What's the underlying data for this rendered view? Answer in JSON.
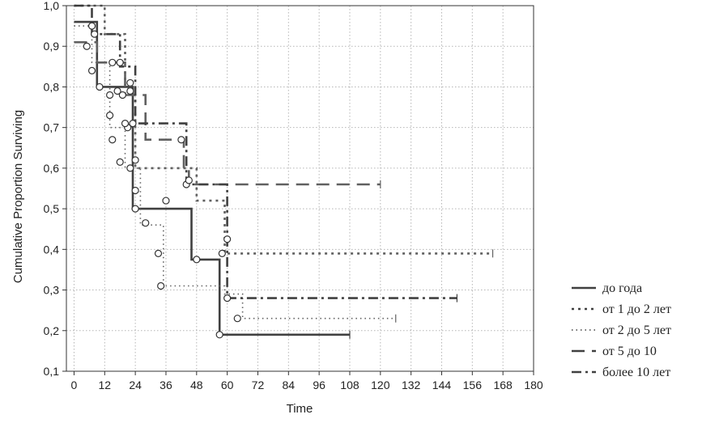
{
  "chart_data": {
    "type": "line",
    "title": "",
    "xlabel": "Time",
    "ylabel": "Cumulative Proportion Surviving",
    "xlim": [
      -3,
      180
    ],
    "ylim": [
      0.1,
      1.0
    ],
    "x_ticks": [
      "0",
      "12",
      "24",
      "36",
      "48",
      "60",
      "72",
      "84",
      "96",
      "108",
      "120",
      "132",
      "144",
      "156",
      "168",
      "180"
    ],
    "y_ticks": [
      "0,1",
      "0,2",
      "0,3",
      "0,4",
      "0,5",
      "0,6",
      "0,7",
      "0,8",
      "0,9",
      "1,0"
    ],
    "grid": true,
    "legend_position": "right",
    "series": [
      {
        "name": "до года",
        "style": "solid",
        "color": "#404040",
        "x": [
          0,
          9,
          9,
          23,
          23,
          46,
          46,
          57,
          57,
          108
        ],
        "y": [
          0.96,
          0.96,
          0.8,
          0.8,
          0.5,
          0.5,
          0.375,
          0.375,
          0.19,
          0.19
        ],
        "censored_x": [
          108
        ]
      },
      {
        "name": "от 1 до 2 лет",
        "style": "dotted",
        "color": "#606060",
        "x": [
          0,
          12,
          12,
          20,
          20,
          24,
          24,
          48,
          48,
          59,
          59,
          164
        ],
        "y": [
          1.0,
          1.0,
          0.93,
          0.93,
          0.8,
          0.8,
          0.6,
          0.6,
          0.52,
          0.52,
          0.39,
          0.39
        ],
        "censored_x": [
          164
        ]
      },
      {
        "name": "от 2 до 5 лет",
        "style": "fine-dotted",
        "color": "#606060",
        "x": [
          0,
          7,
          7,
          14,
          14,
          20,
          20,
          26,
          26,
          35,
          35,
          59,
          59,
          66,
          66,
          126
        ],
        "y": [
          0.95,
          0.95,
          0.86,
          0.86,
          0.7,
          0.7,
          0.6,
          0.6,
          0.46,
          0.46,
          0.31,
          0.31,
          0.29,
          0.29,
          0.23,
          0.23
        ],
        "censored_x": [
          126
        ]
      },
      {
        "name": "от 5 до 10",
        "style": "long-dash",
        "color": "#606060",
        "x": [
          0,
          9,
          9,
          20,
          20,
          28,
          28,
          43,
          43,
          45,
          45,
          120
        ],
        "y": [
          0.91,
          0.91,
          0.86,
          0.86,
          0.78,
          0.78,
          0.67,
          0.67,
          0.6,
          0.6,
          0.56,
          0.56
        ],
        "censored_x": [
          120
        ]
      },
      {
        "name": "более 10 лет",
        "style": "dash-dot",
        "color": "#404040",
        "x": [
          0,
          7,
          7,
          18,
          18,
          24,
          24,
          44,
          44,
          60,
          60,
          150
        ],
        "y": [
          1.0,
          1.0,
          0.93,
          0.93,
          0.85,
          0.85,
          0.71,
          0.71,
          0.56,
          0.56,
          0.28,
          0.28
        ],
        "censored_x": [
          150
        ]
      }
    ],
    "markers": {
      "circles": [
        [
          5,
          0.9
        ],
        [
          7,
          0.95
        ],
        [
          8,
          0.93
        ],
        [
          7,
          0.84
        ],
        [
          10,
          0.8
        ],
        [
          14,
          0.78
        ],
        [
          14,
          0.73
        ],
        [
          15,
          0.67
        ],
        [
          15,
          0.86
        ],
        [
          18,
          0.86
        ],
        [
          17,
          0.79
        ],
        [
          19,
          0.78
        ],
        [
          18,
          0.615
        ],
        [
          21,
          0.7
        ],
        [
          20,
          0.71
        ],
        [
          23,
          0.71
        ],
        [
          22,
          0.81
        ],
        [
          22,
          0.79
        ],
        [
          22,
          0.6
        ],
        [
          24,
          0.62
        ],
        [
          24,
          0.545
        ],
        [
          24,
          0.5
        ],
        [
          28,
          0.465
        ],
        [
          33,
          0.39
        ],
        [
          34,
          0.31
        ],
        [
          36,
          0.52
        ],
        [
          42,
          0.67
        ],
        [
          44,
          0.56
        ],
        [
          45,
          0.57
        ],
        [
          48,
          0.375
        ],
        [
          57,
          0.19
        ],
        [
          58,
          0.39
        ],
        [
          60,
          0.425
        ],
        [
          60,
          0.28
        ],
        [
          64,
          0.23
        ]
      ]
    }
  },
  "legend": {
    "items": [
      {
        "label": "до года",
        "style": "solid"
      },
      {
        "label": "от 1 до 2 лет",
        "style": "dotted"
      },
      {
        "label": "от 2 до 5 лет",
        "style": "fine-dotted"
      },
      {
        "label": "от 5 до 10",
        "style": "long-dash"
      },
      {
        "label": "более 10 лет",
        "style": "dash-dot"
      }
    ]
  }
}
